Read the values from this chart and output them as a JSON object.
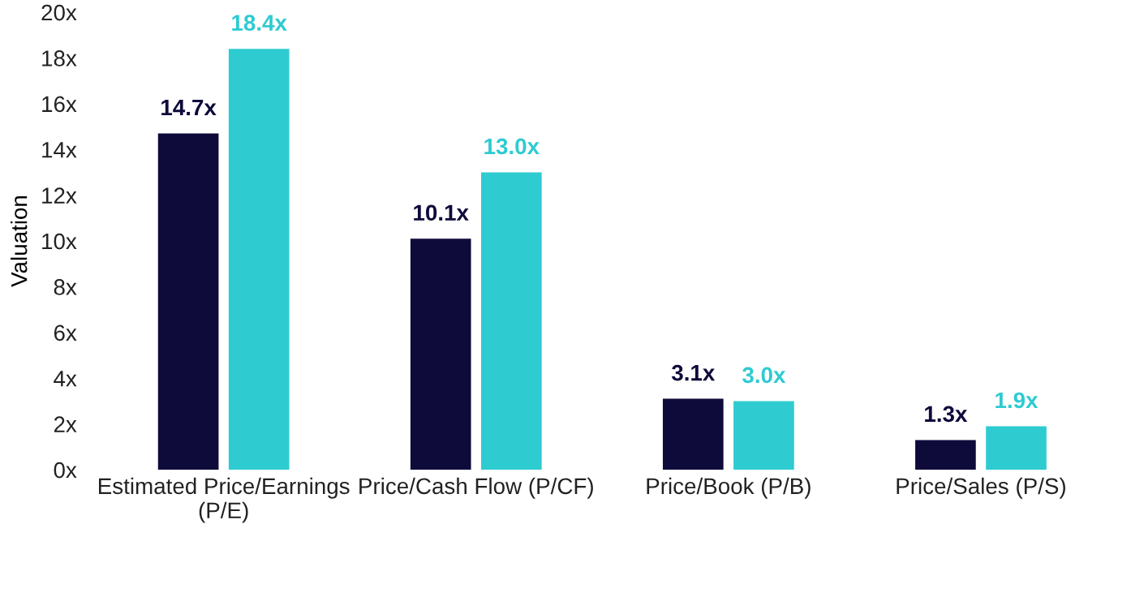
{
  "chart_data": {
    "type": "bar",
    "ylabel": "Valuation",
    "categories": [
      "Estimated Price/Earnings\n(P/E)",
      "Price/Cash Flow (P/CF)",
      "Price/Book (P/B)",
      "Price/Sales (P/S)"
    ],
    "series": [
      {
        "color": "#0e0b3b",
        "values": [
          14.7,
          10.1,
          3.1,
          1.3
        ],
        "value_labels": [
          "14.7x",
          "10.1x",
          "3.1x",
          "1.3x"
        ]
      },
      {
        "color": "#2ecbd1",
        "values": [
          18.4,
          13.0,
          3.0,
          1.9
        ],
        "value_labels": [
          "18.4x",
          "13.0x",
          "3.0x",
          "1.9x"
        ]
      }
    ],
    "ylim": [
      0,
      20
    ],
    "yticks": [
      {
        "value": 0,
        "label": "0x"
      },
      {
        "value": 2,
        "label": "2x"
      },
      {
        "value": 4,
        "label": "4x"
      },
      {
        "value": 6,
        "label": "6x"
      },
      {
        "value": 8,
        "label": "8x"
      },
      {
        "value": 10,
        "label": "10x"
      },
      {
        "value": 12,
        "label": "12x"
      },
      {
        "value": 14,
        "label": "14x"
      },
      {
        "value": 16,
        "label": "16x"
      },
      {
        "value": 18,
        "label": "18x"
      },
      {
        "value": 20,
        "label": "20x"
      }
    ],
    "grid": false
  }
}
